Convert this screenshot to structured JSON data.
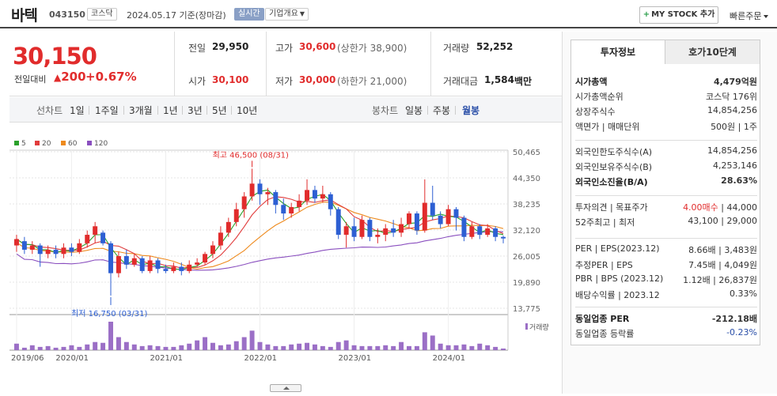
{
  "header": {
    "name": "바텍",
    "code": "043150",
    "market": "코스닥",
    "date_text": "2024.05.17  기준(장마감)",
    "realtime": "실시간",
    "company_info": "기업개요",
    "mystock": "MY STOCK 추가",
    "quick": "빠른주문"
  },
  "price": {
    "current": "30,150",
    "change_label": "전일대비",
    "change": "200",
    "change_pct": "+0.67%",
    "prev_close_label": "전일",
    "prev_close": "29,950",
    "open_label": "시가",
    "open": "30,100",
    "high_label": "고가",
    "high": "30,600",
    "upper_limit": "(상한가 38,900)",
    "low_label": "저가",
    "low": "30,000",
    "lower_limit": "(하한가 21,000)",
    "volume_label": "거래량",
    "volume": "52,252",
    "value_label": "거래대금",
    "value": "1,584",
    "value_unit": "백만"
  },
  "tabs": {
    "line_label": "선차트",
    "line_periods": [
      "1일",
      "1주일",
      "3개월",
      "1년",
      "3년",
      "5년",
      "10년"
    ],
    "candle_label": "봉차트",
    "candle_periods": [
      "일봉",
      "주봉",
      "월봉"
    ],
    "active_candle": "월봉"
  },
  "chart_data": {
    "type": "candlestick",
    "legend": [
      {
        "name": "5",
        "color": "#2aa02a"
      },
      {
        "name": "20",
        "color": "#e13c3c"
      },
      {
        "name": "60",
        "color": "#ee8a1d"
      },
      {
        "name": "120",
        "color": "#8a4fbf"
      }
    ],
    "y_ticks": [
      50465,
      44350,
      38235,
      32120,
      26005,
      19890,
      13775
    ],
    "y_tick_labels": [
      "50,465",
      "44,350",
      "38,235",
      "32,120",
      "26,005",
      "19,890",
      "13,775"
    ],
    "ylim": [
      13775,
      50465
    ],
    "x_tick_labels": [
      "2019/06",
      "2020/01",
      "2021/01",
      "2022/01",
      "2023/01",
      "2024/01"
    ],
    "annotations": {
      "max_label": "최고 46,500 (08/31)",
      "min_label": "최저 16,750 (03/31)",
      "max_value": 46500,
      "min_value": 16750
    },
    "volume_legend": "거래량",
    "candles": [
      {
        "o": 28500,
        "c": 30000,
        "h": 31000,
        "l": 27000
      },
      {
        "o": 29500,
        "c": 27500,
        "h": 30500,
        "l": 26500
      },
      {
        "o": 27500,
        "c": 28500,
        "h": 29500,
        "l": 26500
      },
      {
        "o": 28500,
        "c": 26500,
        "h": 29000,
        "l": 23500
      },
      {
        "o": 26500,
        "c": 27500,
        "h": 28500,
        "l": 25500
      },
      {
        "o": 27500,
        "c": 26500,
        "h": 28500,
        "l": 25500
      },
      {
        "o": 26500,
        "c": 28000,
        "h": 29000,
        "l": 25500
      },
      {
        "o": 28000,
        "c": 27000,
        "h": 29000,
        "l": 26000
      },
      {
        "o": 27000,
        "c": 29000,
        "h": 30000,
        "l": 26500
      },
      {
        "o": 29000,
        "c": 31000,
        "h": 32000,
        "l": 28000
      },
      {
        "o": 31000,
        "c": 33000,
        "h": 34000,
        "l": 29000
      },
      {
        "o": 31500,
        "c": 29000,
        "h": 32000,
        "l": 28500
      },
      {
        "o": 29000,
        "c": 22000,
        "h": 29500,
        "l": 16750
      },
      {
        "o": 22000,
        "c": 26000,
        "h": 27000,
        "l": 21000
      },
      {
        "o": 26000,
        "c": 24000,
        "h": 27500,
        "l": 23000
      },
      {
        "o": 24000,
        "c": 25500,
        "h": 26500,
        "l": 23500
      },
      {
        "o": 25500,
        "c": 22500,
        "h": 26000,
        "l": 22000
      },
      {
        "o": 22500,
        "c": 25000,
        "h": 26000,
        "l": 22000
      },
      {
        "o": 25000,
        "c": 23000,
        "h": 25500,
        "l": 22000
      },
      {
        "o": 23000,
        "c": 22500,
        "h": 24000,
        "l": 22000
      },
      {
        "o": 22500,
        "c": 23500,
        "h": 24500,
        "l": 22000
      },
      {
        "o": 23500,
        "c": 22500,
        "h": 24500,
        "l": 21500
      },
      {
        "o": 22500,
        "c": 24000,
        "h": 25000,
        "l": 22000
      },
      {
        "o": 24000,
        "c": 24500,
        "h": 25500,
        "l": 23500
      },
      {
        "o": 24500,
        "c": 26500,
        "h": 27000,
        "l": 24000
      },
      {
        "o": 26500,
        "c": 28500,
        "h": 29500,
        "l": 25500
      },
      {
        "o": 28500,
        "c": 31500,
        "h": 33000,
        "l": 27500
      },
      {
        "o": 31500,
        "c": 34000,
        "h": 35000,
        "l": 30500
      },
      {
        "o": 34000,
        "c": 37000,
        "h": 38500,
        "l": 33000
      },
      {
        "o": 37000,
        "c": 40000,
        "h": 41000,
        "l": 35000
      },
      {
        "o": 40000,
        "c": 43000,
        "h": 46500,
        "l": 39000
      },
      {
        "o": 43000,
        "c": 40500,
        "h": 44000,
        "l": 38000
      },
      {
        "o": 40500,
        "c": 41000,
        "h": 42000,
        "l": 38000
      },
      {
        "o": 41000,
        "c": 38000,
        "h": 41500,
        "l": 36000
      },
      {
        "o": 38000,
        "c": 36000,
        "h": 39500,
        "l": 34500
      },
      {
        "o": 36000,
        "c": 37500,
        "h": 38500,
        "l": 35000
      },
      {
        "o": 37500,
        "c": 39000,
        "h": 40500,
        "l": 36500
      },
      {
        "o": 39000,
        "c": 41500,
        "h": 44000,
        "l": 38000
      },
      {
        "o": 41500,
        "c": 39500,
        "h": 42500,
        "l": 38500
      },
      {
        "o": 39500,
        "c": 40500,
        "h": 42500,
        "l": 38500
      },
      {
        "o": 40500,
        "c": 37000,
        "h": 41000,
        "l": 35500
      },
      {
        "o": 37000,
        "c": 31000,
        "h": 37500,
        "l": 30000
      },
      {
        "o": 31000,
        "c": 33000,
        "h": 34000,
        "l": 28000
      },
      {
        "o": 33000,
        "c": 30500,
        "h": 35000,
        "l": 29500
      },
      {
        "o": 30500,
        "c": 34500,
        "h": 35500,
        "l": 30000
      },
      {
        "o": 34500,
        "c": 30500,
        "h": 35000,
        "l": 29500
      },
      {
        "o": 30500,
        "c": 31000,
        "h": 32500,
        "l": 29000
      },
      {
        "o": 31000,
        "c": 32500,
        "h": 33500,
        "l": 29500
      },
      {
        "o": 32500,
        "c": 31500,
        "h": 34500,
        "l": 30500
      },
      {
        "o": 31500,
        "c": 33500,
        "h": 35000,
        "l": 30500
      },
      {
        "o": 33500,
        "c": 36000,
        "h": 36500,
        "l": 32500
      },
      {
        "o": 36000,
        "c": 32000,
        "h": 36500,
        "l": 31000
      },
      {
        "o": 32000,
        "c": 38500,
        "h": 44000,
        "l": 31500
      },
      {
        "o": 38500,
        "c": 35500,
        "h": 42500,
        "l": 34500
      },
      {
        "o": 35500,
        "c": 33500,
        "h": 36500,
        "l": 32500
      },
      {
        "o": 33500,
        "c": 37000,
        "h": 38000,
        "l": 33000
      },
      {
        "o": 37000,
        "c": 35000,
        "h": 37500,
        "l": 32000
      },
      {
        "o": 35000,
        "c": 30500,
        "h": 35500,
        "l": 29500
      },
      {
        "o": 30500,
        "c": 33000,
        "h": 34000,
        "l": 30000
      },
      {
        "o": 33000,
        "c": 31000,
        "h": 33500,
        "l": 30000
      },
      {
        "o": 31000,
        "c": 32500,
        "h": 33500,
        "l": 30500
      },
      {
        "o": 32500,
        "c": 30500,
        "h": 33000,
        "l": 29500
      },
      {
        "o": 30500,
        "c": 30150,
        "h": 30800,
        "l": 29000
      }
    ],
    "volumes": [
      8,
      3,
      6,
      4,
      5,
      3,
      4,
      6,
      4,
      7,
      10,
      9,
      35,
      16,
      10,
      7,
      5,
      6,
      5,
      4,
      4,
      6,
      8,
      12,
      16,
      9,
      6,
      7,
      11,
      16,
      24,
      10,
      7,
      5,
      5,
      7,
      8,
      9,
      7,
      5,
      4,
      10,
      12,
      6,
      5,
      5,
      5,
      6,
      5,
      10,
      5,
      5,
      22,
      18,
      8,
      6,
      6,
      7,
      5,
      8,
      6,
      4,
      2
    ]
  },
  "info": {
    "tab_active": "투자정보",
    "tab_inactive": "호가10단계",
    "rows1": [
      {
        "k": "시가총액",
        "v": "4,479억원",
        "bold": true
      },
      {
        "k": "시가총액순위",
        "v": "코스닥 176위"
      },
      {
        "k": "상장주식수",
        "v": "14,854,256"
      },
      {
        "k": "액면가 | 매매단위",
        "v": "500원 | 1주"
      }
    ],
    "rows2": [
      {
        "k": "외국인한도주식수(A)",
        "v": "14,854,256"
      },
      {
        "k": "외국인보유주식수(B)",
        "v": "4,253,146"
      },
      {
        "k": "외국인소진율(B/A)",
        "v": "28.63%",
        "bold": true
      }
    ],
    "rows3": [
      {
        "k": "투자의견 | 목표주가",
        "v_red": "4.00매수",
        "v": " | 44,000"
      },
      {
        "k": "52주최고 | 최저",
        "v": "43,100 | 29,000"
      }
    ],
    "rows4": [
      {
        "k": "PER | EPS(2023.12)",
        "v": "8.66배 | 3,483원"
      },
      {
        "k": "추정PER | EPS",
        "v": "7.45배 | 4,049원"
      },
      {
        "k": "PBR | BPS (2023.12)",
        "v": "1.12배 | 26,837원"
      },
      {
        "k": "배당수익률 | 2023.12",
        "v": "0.33%"
      }
    ],
    "rows5": [
      {
        "k": "동일업종 PER",
        "v": "-212.18배",
        "bold": true
      },
      {
        "k": "동일업종 등락률",
        "v": "-0.23%",
        "blue": true
      }
    ]
  }
}
